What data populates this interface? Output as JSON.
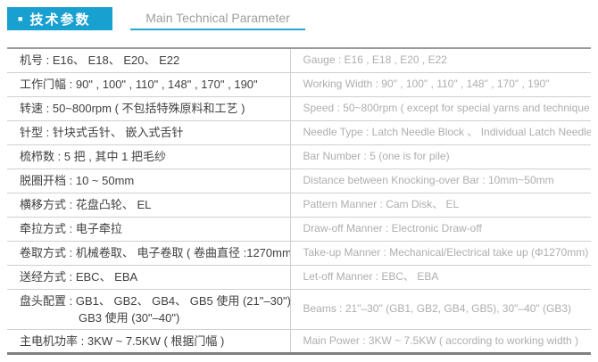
{
  "header": {
    "badge_square": "■",
    "badge_cn": "技术参数",
    "title_en": "Main Technical Parameter"
  },
  "colors": {
    "accent": "#18a0d1",
    "left_text": "#3f3f3f",
    "right_text": "#aeaeae",
    "row_border": "#cfcfcf",
    "table_top_border": "#9a9a9a",
    "table_bottom_border": "#7f7f7f"
  },
  "table": {
    "rows": [
      {
        "cn": "机号 : E16、 E18、 E20、 E22",
        "en": "Gauge : E16 , E18 , E20 , E22"
      },
      {
        "cn": "工作门幅 : 90\" , 100\" , 110\" , 148\" , 170\" , 190\"",
        "en": "Working Width : 90\" , 100\" , 110\" , 148\" , 170\" , 190\""
      },
      {
        "cn": "转速 : 50~800rpm ( 不包括特殊原料和工艺 )",
        "en": "Speed : 50~800rpm ( except for special yarns and technique )"
      },
      {
        "cn": "针型 : 针块式舌针、 嵌入式舌针",
        "en": "Needle Type : Latch Needle Block 、 Individual Latch Needle"
      },
      {
        "cn": "梳栉数 : 5 把 , 其中 1 把毛纱",
        "en": "Bar Number : 5 (one is for pile)"
      },
      {
        "cn": "脱圈开档 : 10 ~ 50mm",
        "en": "Distance between Knocking-over Bar : 10mm~50mm"
      },
      {
        "cn": "横移方式 : 花盘凸轮、 EL",
        "en": "Pattern Manner : Cam Disk、 EL"
      },
      {
        "cn": "牵拉方式 : 电子牵拉",
        "en": "Draw-off Manner : Electronic Draw-off"
      },
      {
        "cn": "卷取方式 : 机械卷取、 电子卷取 ( 卷曲直径 :1270mm)",
        "en": "Take-up Manner :  Mechanical/Electrical take up (Φ1270mm)"
      },
      {
        "cn": "送经方式 : EBC、 EBA",
        "en": "Let-off Manner : EBC、 EBA"
      },
      {
        "cn": "盘头配置 : GB1、 GB2、 GB4、 GB5 使用 (21\"–30\")、",
        "cn2": "GB3 使用 (30\"–40\")",
        "en": "Beams : 21\"–30\" (GB1, GB2, GB4, GB5),  30\"–40\" (GB3)"
      },
      {
        "cn": "主电机功率 : 3KW ~ 7.5KW  ( 根据门幅 )",
        "en": "Main Power : 3KW ~ 7.5KW  ( according to working width )"
      }
    ]
  }
}
